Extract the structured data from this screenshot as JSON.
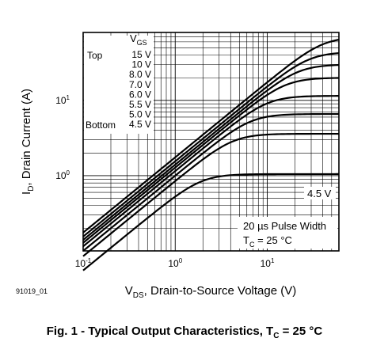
{
  "chart_data": {
    "type": "line",
    "x_scale": "log",
    "y_scale": "log",
    "xlim": [
      0.1,
      60
    ],
    "ylim": [
      0.1,
      80
    ],
    "x_ticks": [
      {
        "value": 0.1,
        "base": "10",
        "exp": "-1"
      },
      {
        "value": 1,
        "base": "10",
        "exp": "0"
      },
      {
        "value": 10,
        "base": "10",
        "exp": "1"
      }
    ],
    "y_ticks": [
      {
        "value": 1,
        "base": "10",
        "exp": "0"
      },
      {
        "value": 10,
        "base": "10",
        "exp": "1"
      }
    ],
    "xlabel": {
      "main": "V",
      "sub": "DS",
      "rest": ", Drain-to-Source Voltage (V)"
    },
    "ylabel": {
      "main": "I",
      "sub": "D",
      "rest": ", Drain Current (A)"
    },
    "grid": true,
    "legend": {
      "title_main": "V",
      "title_sub": "GS",
      "top_label": "Top",
      "bottom_label": "Bottom",
      "entries": [
        "15 V",
        "10 V",
        "8.0 V",
        "7.0 V",
        "6.0 V",
        "5.5 V",
        "5.0 V",
        "4.5 V"
      ]
    },
    "curve_label": "4.5 V",
    "conditions": {
      "pulse": "20 µs Pulse Width",
      "tc_main": "T",
      "tc_sub": "C",
      "tc_rest": " = 25 °C"
    },
    "series": [
      {
        "vgs": 15,
        "k": 1.75,
        "sat": 70
      },
      {
        "vgs": 10,
        "k": 1.55,
        "sat": 44
      },
      {
        "vgs": 8.0,
        "k": 1.4,
        "sat": 30
      },
      {
        "vgs": 7.0,
        "k": 1.28,
        "sat": 20
      },
      {
        "vgs": 6.0,
        "k": 1.15,
        "sat": 11.5
      },
      {
        "vgs": 5.5,
        "k": 1.0,
        "sat": 6.6
      },
      {
        "vgs": 5.0,
        "k": 0.85,
        "sat": 3.6
      },
      {
        "vgs": 4.5,
        "k": 0.55,
        "sat": 1.05
      }
    ]
  },
  "figure_id": "91019_01",
  "caption": {
    "prefix": "Fig. 1 - Typical Output Characteristics, T",
    "sub": "C",
    "suffix": " = 25 °C"
  }
}
